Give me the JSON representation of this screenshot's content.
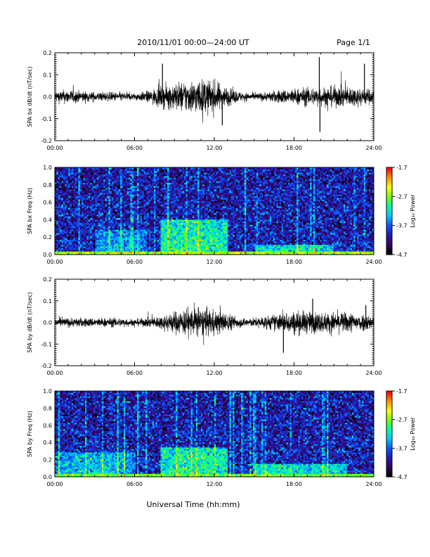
{
  "page": {
    "title": "2010/11/01   00:00—24:00  UT",
    "page_label": "Page 1/1"
  },
  "colors": {
    "trace": "#000000",
    "colormap": [
      "#000000",
      "#3c0064",
      "#1e1eb4",
      "#0a5aff",
      "#00c8ff",
      "#00ffa0",
      "#78ff00",
      "#ffff00",
      "#ff8c00",
      "#ff0000"
    ]
  },
  "chart_data": [
    {
      "type": "line",
      "ylabel": "SPA bx dB/dt (nT/sec)",
      "xlabel": "",
      "xlim": [
        0,
        24
      ],
      "ylim": [
        -0.2,
        0.2
      ],
      "xticks": [
        "00:00",
        "06:00",
        "12:00",
        "18:00",
        "24:00"
      ],
      "yticks": [
        "-0.2",
        "-0.1",
        "0.0",
        "0.1",
        "0.2"
      ],
      "envelope": {
        "hours": [
          0,
          1,
          2,
          3,
          4,
          5,
          6,
          7,
          8,
          9,
          10,
          11,
          12,
          13,
          14,
          15,
          16,
          17,
          18,
          19,
          20,
          21,
          22,
          23,
          24
        ],
        "amplitude": [
          0.025,
          0.03,
          0.025,
          0.02,
          0.02,
          0.02,
          0.015,
          0.025,
          0.045,
          0.06,
          0.07,
          0.075,
          0.07,
          0.04,
          0.02,
          0.015,
          0.02,
          0.03,
          0.035,
          0.04,
          0.04,
          0.045,
          0.045,
          0.04,
          0.03
        ]
      },
      "spikes": [
        {
          "hour": 8.1,
          "value": 0.15
        },
        {
          "hour": 12.6,
          "value": -0.13
        },
        {
          "hour": 19.9,
          "value": 0.18
        },
        {
          "hour": 19.95,
          "value": -0.16
        },
        {
          "hour": 23.3,
          "value": 0.15
        }
      ]
    },
    {
      "type": "heatmap",
      "ylabel": "SPA bx Freq (Hz)",
      "xlabel": "",
      "xlim": [
        0,
        24
      ],
      "ylim": [
        0.0,
        1.0
      ],
      "xticks": [
        "00:00",
        "06:00",
        "12:00",
        "18:00",
        "24:00"
      ],
      "yticks": [
        "0.0",
        "0.2",
        "0.4",
        "0.6",
        "0.8",
        "1.0"
      ],
      "colorbar": {
        "label": "Log₁₀ Power",
        "range": [
          -4.7,
          -1.7
        ],
        "ticks": [
          "-1.7",
          "-2.7",
          "-3.7",
          "-4.7"
        ]
      },
      "features": {
        "background_level": -4.0,
        "low_freq_band_level": -2.6,
        "enhancements": [
          {
            "start_hour": 3,
            "end_hour": 7,
            "max_freq": 0.28,
            "level": -3.4
          },
          {
            "start_hour": 8,
            "end_hour": 13,
            "max_freq": 0.4,
            "level": -3.0
          },
          {
            "start_hour": 15,
            "end_hour": 21,
            "max_freq": 0.12,
            "level": -3.1
          }
        ]
      }
    },
    {
      "type": "line",
      "ylabel": "SPA by dB/dt (nT/sec)",
      "xlabel": "",
      "xlim": [
        0,
        24
      ],
      "ylim": [
        -0.2,
        0.2
      ],
      "xticks": [
        "00:00",
        "06:00",
        "12:00",
        "18:00",
        "24:00"
      ],
      "yticks": [
        "-0.2",
        "-0.1",
        "0.0",
        "0.1",
        "0.2"
      ],
      "envelope": {
        "hours": [
          0,
          1,
          2,
          3,
          4,
          5,
          6,
          7,
          8,
          9,
          10,
          11,
          12,
          13,
          14,
          15,
          16,
          17,
          18,
          19,
          20,
          21,
          22,
          23,
          24
        ],
        "amplitude": [
          0.02,
          0.02,
          0.02,
          0.02,
          0.02,
          0.02,
          0.015,
          0.02,
          0.03,
          0.05,
          0.06,
          0.06,
          0.055,
          0.04,
          0.02,
          0.02,
          0.03,
          0.04,
          0.05,
          0.05,
          0.045,
          0.045,
          0.045,
          0.04,
          0.03
        ]
      },
      "spikes": [
        {
          "hour": 10.8,
          "value": 0.07
        },
        {
          "hour": 17.2,
          "value": -0.14
        },
        {
          "hour": 19.4,
          "value": 0.11
        },
        {
          "hour": 23.4,
          "value": 0.08
        }
      ]
    },
    {
      "type": "heatmap",
      "ylabel": "SPA by Freq (Hz)",
      "xlabel": "Universal Time (hh:mm)",
      "xlim": [
        0,
        24
      ],
      "ylim": [
        0.0,
        1.0
      ],
      "xticks": [
        "00:00",
        "06:00",
        "12:00",
        "18:00",
        "24:00"
      ],
      "yticks": [
        "0.0",
        "0.2",
        "0.4",
        "0.6",
        "0.8",
        "1.0"
      ],
      "colorbar": {
        "label": "Log₁₀ Power",
        "range": [
          -4.7,
          -1.7
        ],
        "ticks": [
          "-1.7",
          "-2.7",
          "-3.7",
          "-4.7"
        ]
      },
      "features": {
        "background_level": -4.0,
        "low_freq_band_level": -2.8,
        "enhancements": [
          {
            "start_hour": 0,
            "end_hour": 6,
            "max_freq": 0.28,
            "level": -3.3
          },
          {
            "start_hour": 8,
            "end_hour": 13,
            "max_freq": 0.35,
            "level": -3.0
          },
          {
            "start_hour": 15,
            "end_hour": 22,
            "max_freq": 0.15,
            "level": -3.1
          }
        ]
      }
    }
  ]
}
